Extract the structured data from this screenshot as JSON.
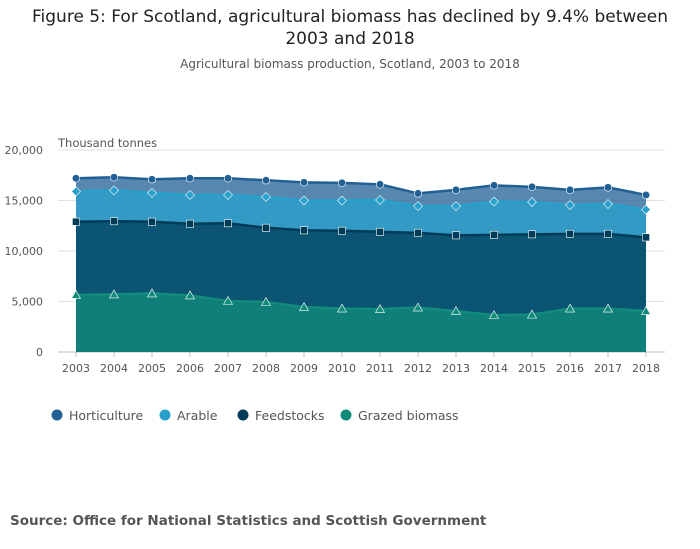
{
  "chart_data": {
    "type": "area",
    "stacked": true,
    "title": "Figure 5: For Scotland, agricultural biomass has declined by 9.4% between 2003 and 2018",
    "subtitle": "Agricultural biomass production, Scotland, 2003 to 2018",
    "ylabel": "Thousand tonnes",
    "xlabel": "",
    "ylim": [
      0,
      20000
    ],
    "yticks": [
      0,
      5000,
      10000,
      15000,
      20000
    ],
    "ytick_labels": [
      "0",
      "5,000",
      "10,000",
      "15,000",
      "20,000"
    ],
    "grid": "horizontal",
    "legend_position": "bottom-left",
    "categories": [
      "2003",
      "2004",
      "2005",
      "2006",
      "2007",
      "2008",
      "2009",
      "2010",
      "2011",
      "2012",
      "2013",
      "2014",
      "2015",
      "2016",
      "2017",
      "2018"
    ],
    "series": [
      {
        "name": "Horticulture",
        "color": "#206095",
        "marker": "circle",
        "cumulative_values": [
          17200,
          17300,
          17100,
          17200,
          17200,
          17000,
          16800,
          16750,
          16600,
          15700,
          16050,
          16500,
          16350,
          16050,
          16300,
          15550
        ]
      },
      {
        "name": "Arable",
        "color": "#27a0cc",
        "marker": "diamond",
        "cumulative_values": [
          15900,
          16000,
          15750,
          15550,
          15550,
          15350,
          15000,
          15000,
          15050,
          14450,
          14450,
          14900,
          14850,
          14550,
          14650,
          14100
        ]
      },
      {
        "name": "Feedstocks",
        "color": "#003c57",
        "marker": "square",
        "cumulative_values": [
          12900,
          12950,
          12900,
          12700,
          12750,
          12300,
          12050,
          12000,
          11900,
          11800,
          11550,
          11600,
          11650,
          11700,
          11700,
          11350
        ]
      },
      {
        "name": "Grazed biomass",
        "color": "#118c7b",
        "marker": "triangle",
        "cumulative_values": [
          5650,
          5700,
          5800,
          5600,
          5050,
          4950,
          4450,
          4300,
          4250,
          4400,
          4050,
          3650,
          3700,
          4300,
          4300,
          4050
        ]
      }
    ]
  },
  "source": "Source: Office for National Statistics and Scottish Government"
}
